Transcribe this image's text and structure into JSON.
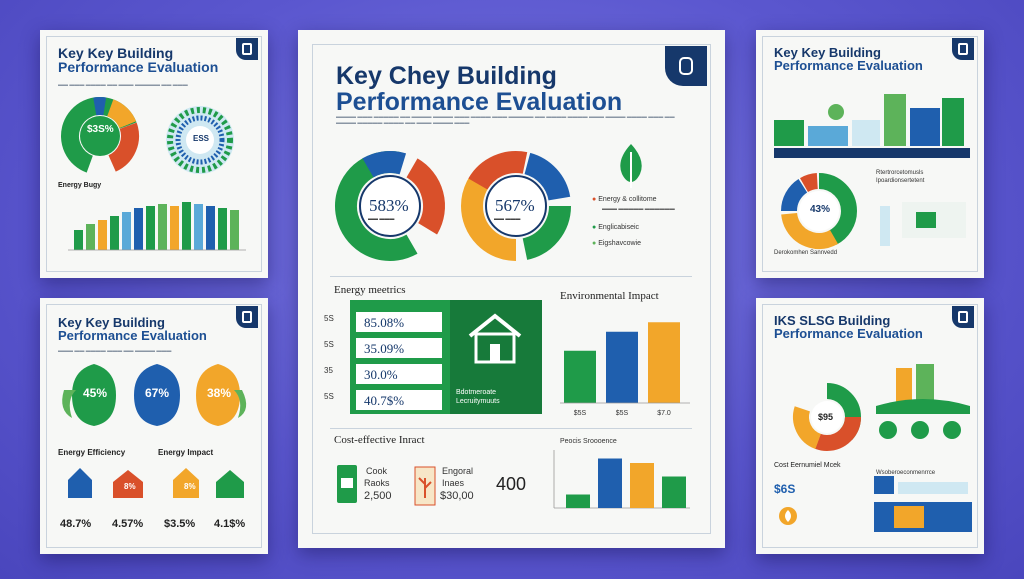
{
  "cards": {
    "top_left": {
      "title1": "Key Key Building",
      "title2": "Performance Evaluation",
      "donut_label": "$3S%",
      "wheel_label": "ESS",
      "chart_label": "Energy Bugy"
    },
    "mid_left": {
      "title1": "Key Key Building",
      "title2": "Performance Evaluation",
      "drops": [
        "45%",
        "67%",
        "38%"
      ],
      "energy_label": "Energy Efficiency",
      "impact_label": "Energy Impact",
      "house_vals": [
        "8%",
        "8%"
      ],
      "stats": [
        "48.7%",
        "4.57%",
        "$3.5%",
        "4.1$%"
      ]
    },
    "main": {
      "title1": "Key Chey Building",
      "title2": "Performance Evaluation",
      "donut1_value": "583%",
      "donut2_value": "567%",
      "legend": [
        "Energy & collitome",
        "Englicabiseic",
        "Eigshavcowie"
      ],
      "metrics_title": "Energy meetrics",
      "metrics": [
        {
          "label": "5S",
          "value": "85.08%"
        },
        {
          "label": "5S",
          "value": "35.09%"
        },
        {
          "label": "35",
          "value": "30.0%"
        },
        {
          "label": "5S",
          "value": "40.7$%"
        }
      ],
      "house_caption": "Bdotmeroate Lecruitymuuts",
      "env_title": "Environmental Impact",
      "env_bars": [
        {
          "label": "$5S",
          "value": 55,
          "color": "#1f9b49"
        },
        {
          "label": "$5S",
          "value": 75,
          "color": "#1f5fae"
        },
        {
          "label": "$7.0",
          "value": 85,
          "color": "#f2a62a"
        }
      ],
      "cost_title": "Cost-effective Inract",
      "cost_item1": "Cook",
      "cost_item1b": "Raoks",
      "cost_value1": "2,500",
      "cost_item2": "Engoral",
      "cost_item2b": "Inaes",
      "cost_value2": "$30,00",
      "cost_big": "400",
      "small_chart_title": "Peocis Sroooence",
      "small_bars": [
        {
          "value": 15,
          "color": "#1f9b49"
        },
        {
          "value": 55,
          "color": "#1f5fae"
        },
        {
          "value": 50,
          "color": "#f2a62a"
        },
        {
          "value": 35,
          "color": "#1f9b49"
        }
      ]
    },
    "top_right": {
      "title1": "Key Key Building",
      "title2": "Performance Evaluation",
      "donut_label": "43%",
      "note1": "Rtertrorcetomusls",
      "note2": "Ipoardionsertetent",
      "bottom": "Derokomhen Sannvedd"
    },
    "mid_right": {
      "title1": "IKS SLSG Building",
      "title2": "Performance Evaluation",
      "donut_label": "$95",
      "cost_title": "Cost Eernumiel Mcek",
      "stat": "$6S",
      "note": "Wsoberoeconmenrrce"
    }
  },
  "colors": {
    "navy": "#16386b",
    "green": "#1f9b49",
    "blue": "#1f5fae",
    "orange": "#f2a62a",
    "red": "#d9502a",
    "background": "#5b57cf"
  }
}
